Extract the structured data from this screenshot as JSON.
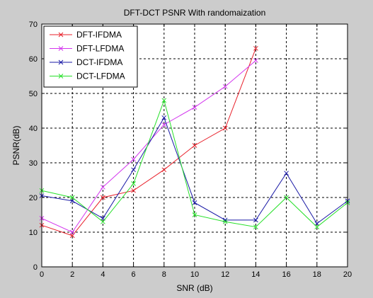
{
  "chart_data": {
    "type": "line",
    "title": "DFT-DCT PSNR With randomaization",
    "xlabel": "SNR (dB)",
    "ylabel": "PSNR(dB)",
    "xlim": [
      0,
      20
    ],
    "ylim": [
      0,
      70
    ],
    "xticks": [
      0,
      2,
      4,
      6,
      8,
      10,
      12,
      14,
      16,
      18,
      20
    ],
    "yticks": [
      0,
      10,
      20,
      30,
      40,
      50,
      60,
      70
    ],
    "grid": true,
    "legend": "top-left",
    "marker": "x",
    "series": [
      {
        "name": "DFT-IFDMA",
        "color": "#e8202a",
        "x": [
          0,
          2,
          4,
          6,
          8,
          10,
          12,
          14
        ],
        "y": [
          12,
          9,
          20,
          22,
          28,
          35,
          40,
          63
        ]
      },
      {
        "name": "DFT-LFDMA",
        "color": "#d335ee",
        "x": [
          0,
          2,
          4,
          6,
          8,
          10,
          12,
          14
        ],
        "y": [
          14,
          10,
          23,
          31,
          41,
          46,
          52,
          59.5
        ]
      },
      {
        "name": "DCT-IFDMA",
        "color": "#1a1aa6",
        "x": [
          0,
          2,
          4,
          6,
          8,
          10,
          12,
          14,
          16,
          18,
          20
        ],
        "y": [
          20.5,
          19,
          14,
          28,
          43,
          18.5,
          13.5,
          13.5,
          27,
          12.5,
          19
        ]
      },
      {
        "name": "DCT-LFDMA",
        "color": "#27e02a",
        "x": [
          0,
          2,
          4,
          6,
          8,
          10,
          12,
          14,
          16,
          18,
          20
        ],
        "y": [
          22,
          20,
          13,
          24,
          48,
          15,
          13,
          11.5,
          20,
          11.5,
          18.5
        ]
      }
    ]
  }
}
